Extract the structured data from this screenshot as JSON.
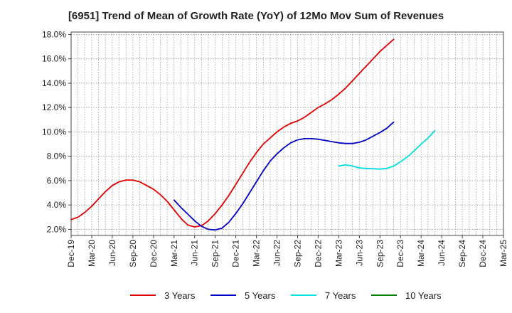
{
  "chart_data": {
    "type": "line",
    "title": "[6951]  Trend of Mean of Growth Rate (YoY) of 12Mo Mov Sum of Revenues",
    "xlabel": "",
    "ylabel": "",
    "x_ticks": [
      "Dec-19",
      "Mar-20",
      "Jun-20",
      "Sep-20",
      "Dec-20",
      "Mar-21",
      "Jun-21",
      "Sep-21",
      "Dec-21",
      "Mar-22",
      "Jun-22",
      "Sep-22",
      "Dec-22",
      "Mar-23",
      "Jun-23",
      "Sep-23",
      "Dec-23",
      "Mar-24",
      "Jun-24",
      "Sep-24",
      "Dec-24",
      "Mar-25"
    ],
    "y_ticks": [
      "2.0%",
      "4.0%",
      "6.0%",
      "8.0%",
      "10.0%",
      "12.0%",
      "14.0%",
      "16.0%",
      "18.0%"
    ],
    "ylim": [
      1.5,
      18.2
    ],
    "grid": true,
    "legend_position": "bottom",
    "series": [
      {
        "name": "3 Years",
        "color": "#e00000",
        "start_index": 0,
        "values": [
          2.8,
          3.0,
          3.4,
          3.9,
          4.5,
          5.1,
          5.6,
          5.9,
          6.05,
          6.05,
          5.9,
          5.6,
          5.3,
          4.85,
          4.3,
          3.6,
          2.9,
          2.35,
          2.2,
          2.3,
          2.7,
          3.3,
          4.0,
          4.8,
          5.7,
          6.6,
          7.5,
          8.3,
          9.0,
          9.5,
          10.0,
          10.4,
          10.7,
          10.9,
          11.2,
          11.6,
          12.0,
          12.3,
          12.65,
          13.1,
          13.6,
          14.2,
          14.8,
          15.4,
          16.0,
          16.6,
          17.1,
          17.6
        ]
      },
      {
        "name": "5 Years",
        "color": "#0000c8",
        "start_index": 15,
        "values": [
          4.4,
          3.8,
          3.25,
          2.7,
          2.25,
          2.0,
          1.95,
          2.1,
          2.6,
          3.3,
          4.1,
          5.0,
          5.9,
          6.8,
          7.6,
          8.2,
          8.7,
          9.1,
          9.35,
          9.45,
          9.45,
          9.4,
          9.3,
          9.2,
          9.1,
          9.05,
          9.05,
          9.15,
          9.35,
          9.65,
          9.95,
          10.3,
          10.8
        ]
      },
      {
        "name": "7 Years",
        "color": "#00e0e0",
        "start_index": 39,
        "values": [
          7.2,
          7.3,
          7.2,
          7.05,
          7.0,
          6.98,
          6.95,
          7.0,
          7.2,
          7.55,
          7.95,
          8.45,
          9.0,
          9.5,
          10.1
        ]
      },
      {
        "name": "10 Years",
        "color": "#008000",
        "start_index": 0,
        "values": []
      }
    ]
  }
}
